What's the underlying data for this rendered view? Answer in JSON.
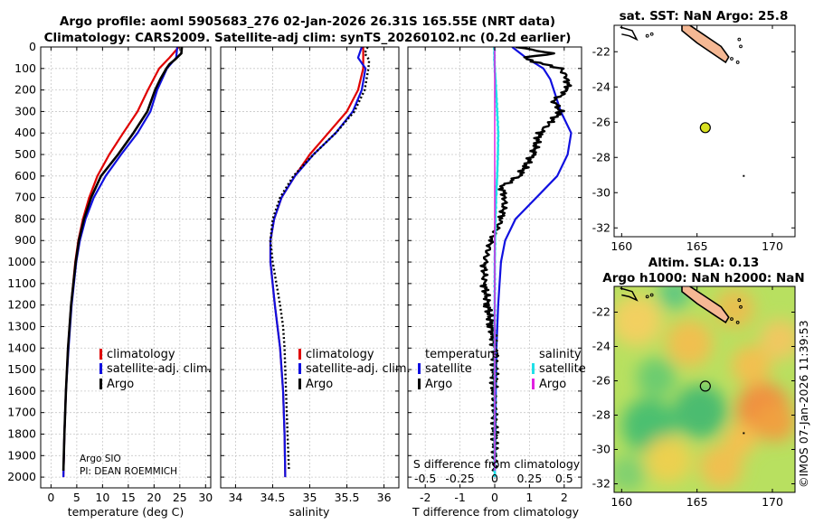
{
  "header": {
    "title_line1": "Argo profile: aoml 5905683_276 02-Jan-2026 26.31S 165.55E (NRT data)",
    "title_line2": "Climatology: CARS2009. Satellite-adj clim: synTS_20260102.nc (0.2d earlier)"
  },
  "colors": {
    "climatology": "#e00000",
    "satellite": "#1010e0",
    "argo": "#000000",
    "sal_satellite": "#20e0e8",
    "sal_argo": "#e020e0",
    "land": "#f5b894"
  },
  "icons": {
    "legend_marker": "vertical-bar-icon"
  },
  "credit": {
    "org": "Argo SIO",
    "pi": "PI: DEAN ROEMMICH"
  },
  "watermark": "©IMOS 07-Jan-2026 11:39:53",
  "chart_data": [
    {
      "name": "temperature-profile",
      "type": "line",
      "xlabel": "temperature (deg C)",
      "ylabel": "",
      "xlim": [
        -2,
        31
      ],
      "ylim": [
        2050,
        0
      ],
      "xticks": [
        0,
        5,
        10,
        15,
        20,
        25,
        30
      ],
      "yticks": [
        0,
        100,
        200,
        300,
        400,
        500,
        600,
        700,
        800,
        900,
        1000,
        1100,
        1200,
        1300,
        1400,
        1500,
        1600,
        1700,
        1800,
        1900,
        2000
      ],
      "legend": [
        "climatology",
        "satellite-adj. clim.",
        "Argo"
      ],
      "series": [
        {
          "name": "climatology",
          "depth": [
            0,
            50,
            100,
            200,
            300,
            400,
            500,
            600,
            700,
            800,
            900,
            1000,
            1200,
            1400,
            1600,
            1800,
            2000
          ],
          "values": [
            24.8,
            23.0,
            21.0,
            18.8,
            16.8,
            14.0,
            11.3,
            9.0,
            7.4,
            6.2,
            5.3,
            4.7,
            3.9,
            3.3,
            2.9,
            2.6,
            2.4
          ]
        },
        {
          "name": "satellite-adj. clim.",
          "depth": [
            0,
            50,
            100,
            200,
            300,
            400,
            500,
            600,
            700,
            800,
            900,
            1000,
            1200,
            1400,
            1600,
            1800,
            2000
          ],
          "values": [
            24.5,
            24.3,
            22.5,
            20.6,
            19.3,
            16.8,
            13.6,
            10.6,
            8.3,
            6.7,
            5.6,
            4.9,
            4.0,
            3.4,
            2.9,
            2.6,
            2.4
          ]
        },
        {
          "name": "Argo",
          "depth": [
            0,
            30,
            60,
            80,
            100,
            150,
            200,
            300,
            400,
            500,
            600,
            700,
            800,
            900,
            1000,
            1200,
            1400,
            1600,
            1800,
            1970
          ],
          "values": [
            25.4,
            25.3,
            24.0,
            23.0,
            22.4,
            21.2,
            20.2,
            18.7,
            16.0,
            13.0,
            9.7,
            7.8,
            6.4,
            5.4,
            4.8,
            3.9,
            3.3,
            2.9,
            2.6,
            2.4
          ]
        }
      ]
    },
    {
      "name": "salinity-profile",
      "type": "line",
      "xlabel": "salinity",
      "xlim": [
        33.8,
        36.2
      ],
      "ylim": [
        2050,
        0
      ],
      "xticks": [
        34,
        34.5,
        35,
        35.5,
        36
      ],
      "legend": [
        "climatology",
        "satellite-adj. clim.",
        "Argo"
      ],
      "series": [
        {
          "name": "climatology",
          "depth": [
            0,
            50,
            100,
            200,
            300,
            400,
            500,
            600,
            700,
            800,
            900,
            1000,
            1200,
            1400,
            1600,
            1800,
            2000
          ],
          "values": [
            35.72,
            35.72,
            35.72,
            35.65,
            35.5,
            35.25,
            35.0,
            34.8,
            34.62,
            34.52,
            34.47,
            34.47,
            34.53,
            34.6,
            34.64,
            34.66,
            34.67
          ]
        },
        {
          "name": "satellite-adj. clim.",
          "depth": [
            0,
            50,
            100,
            200,
            300,
            400,
            500,
            600,
            700,
            800,
            900,
            1000,
            1200,
            1400,
            1600,
            1800,
            2000
          ],
          "values": [
            35.7,
            35.65,
            35.75,
            35.7,
            35.58,
            35.35,
            35.05,
            34.8,
            34.62,
            34.52,
            34.47,
            34.47,
            34.53,
            34.6,
            34.64,
            34.66,
            34.67
          ]
        },
        {
          "name": "Argo",
          "depth": [
            0,
            30,
            60,
            100,
            200,
            300,
            400,
            500,
            600,
            700,
            800,
            900,
            1000,
            1100,
            1200,
            1300,
            1400,
            1600,
            1800,
            1970
          ],
          "values": [
            35.78,
            35.74,
            35.8,
            35.79,
            35.74,
            35.6,
            35.35,
            35.05,
            34.78,
            34.6,
            34.5,
            34.47,
            34.5,
            34.55,
            34.6,
            34.64,
            34.66,
            34.68,
            34.7,
            34.72
          ]
        }
      ]
    },
    {
      "name": "difference-profile",
      "type": "line",
      "xlabel": "T difference from climatology",
      "xlabel_top": "S difference from climatology",
      "xlim": [
        -2.5,
        2.5
      ],
      "ylim": [
        2050,
        0
      ],
      "xticks": [
        -2,
        -1,
        0,
        1,
        2
      ],
      "xticks_secondary": [
        -0.5,
        -0.25,
        0,
        0.25,
        0.5
      ],
      "legend_groups": [
        {
          "heading": "temperature",
          "items": [
            "satellite",
            "Argo"
          ]
        },
        {
          "heading": "salinity",
          "items": [
            "satellite",
            "Argo"
          ]
        }
      ],
      "series": [
        {
          "name": "temperature satellite",
          "depth": [
            0,
            50,
            80,
            100,
            150,
            200,
            300,
            400,
            500,
            600,
            700,
            800,
            900,
            1000,
            1200,
            1400,
            1600,
            1800,
            2000
          ],
          "values": [
            0.5,
            0.9,
            1.2,
            1.4,
            1.6,
            1.7,
            1.9,
            2.2,
            2.1,
            1.8,
            1.2,
            0.6,
            0.3,
            0.18,
            0.1,
            0.05,
            0.03,
            0.02,
            0.0
          ]
        },
        {
          "name": "temperature Argo",
          "depth": [
            0,
            30,
            50,
            80,
            100,
            150,
            200,
            250,
            300,
            350,
            400,
            500,
            600,
            650,
            700,
            800,
            900,
            1000,
            1100,
            1200,
            1300,
            1400,
            1600,
            1800,
            1970
          ],
          "values": [
            0.6,
            1.7,
            0.8,
            1.4,
            1.9,
            2.1,
            2.1,
            1.7,
            1.9,
            1.6,
            1.3,
            1.1,
            0.7,
            0.2,
            0.3,
            0.2,
            -0.1,
            -0.3,
            -0.3,
            -0.2,
            -0.1,
            0.0,
            -0.02,
            0.0,
            0.0
          ]
        },
        {
          "name": "salinity satellite",
          "depth": [
            0,
            50,
            100,
            200,
            300,
            400,
            500,
            600,
            700,
            800,
            900,
            1000,
            1200,
            1400,
            1600,
            1800,
            2000
          ],
          "values": [
            -0.01,
            -0.01,
            0.0,
            0.04,
            0.07,
            0.1,
            0.09,
            0.07,
            0.04,
            0.02,
            0.01,
            0.0,
            0.0,
            0.0,
            0.0,
            0.0,
            0.0
          ]
        },
        {
          "name": "salinity Argo",
          "depth": [
            0,
            100,
            500,
            1000,
            1970
          ],
          "values": [
            0,
            0,
            0,
            0,
            0
          ]
        }
      ]
    },
    {
      "name": "sst-map",
      "type": "scatter",
      "title": "sat. SST: NaN Argo: 25.8",
      "xlim": [
        159.5,
        171.5
      ],
      "ylim": [
        -32.5,
        -20.5
      ],
      "xticks": [
        160,
        165,
        170
      ],
      "yticks": [
        -22,
        -24,
        -26,
        -28,
        -30,
        -32
      ],
      "points": [
        {
          "lon": 165.55,
          "lat": -26.31,
          "label": "Argo float"
        }
      ]
    },
    {
      "name": "sla-map",
      "type": "heatmap",
      "title_line1": "Altim. SLA: 0.13",
      "title_line2": "Argo h1000: NaN h2000: NaN",
      "xlim": [
        159.5,
        171.5
      ],
      "ylim": [
        -32.5,
        -20.5
      ],
      "xticks": [
        160,
        165,
        170
      ],
      "yticks": [
        -22,
        -24,
        -26,
        -28,
        -30,
        -32
      ],
      "points": [
        {
          "lon": 165.55,
          "lat": -26.31,
          "label": "Argo float"
        }
      ]
    }
  ]
}
